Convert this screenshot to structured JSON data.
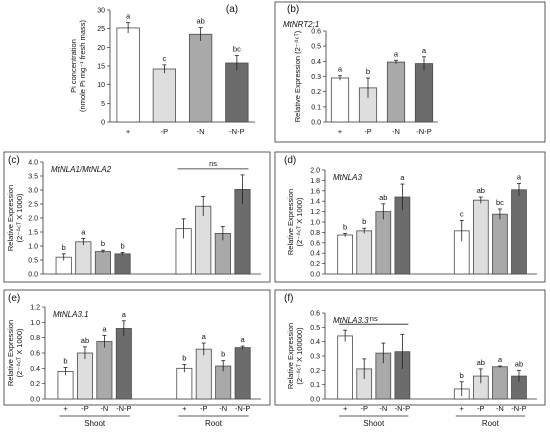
{
  "colors": {
    "plus": "#ffffff",
    "minusP": "#dedede",
    "minusN": "#a9a9a9",
    "minusNP": "#6c6c6c",
    "stroke": "#4a4a4a"
  },
  "categories": [
    "+",
    "-P",
    "-N",
    "-N-P"
  ],
  "groups": [
    "Shoot",
    "Root"
  ],
  "ns_label": "ns",
  "chart_data": [
    {
      "panel": "(a)",
      "type": "bar",
      "gene": "",
      "ylabel_lines": [
        "Pi concentration",
        "(nmole Pi mg⁻¹ fresh mass)"
      ],
      "ylim": [
        0,
        30
      ],
      "yticks": [
        "0",
        "5",
        "10",
        "15",
        "20",
        "25",
        "30"
      ],
      "categories": [
        "+",
        "-P",
        "-N",
        "-N-P"
      ],
      "values": [
        25.2,
        14.2,
        23.5,
        15.8
      ],
      "errors": [
        1.4,
        1.1,
        1.8,
        2.0
      ],
      "letters": [
        "a",
        "c",
        "ab",
        "bc"
      ]
    },
    {
      "panel": "(b)",
      "type": "bar",
      "gene": "MtNRT2;1",
      "ylabel_lines": [
        "Relative Expression (2⁻ᐞᶜᵀ)"
      ],
      "ylim": [
        0,
        0.6
      ],
      "yticks": [
        "0.0",
        "0.1",
        "0.2",
        "0.3",
        "0.4",
        "0.5",
        "0.6"
      ],
      "categories": [
        "+",
        "-P",
        "-N",
        "-N-P"
      ],
      "values": [
        0.29,
        0.225,
        0.395,
        0.385
      ],
      "errors": [
        0.015,
        0.065,
        0.012,
        0.045
      ],
      "letters": [
        "a",
        "b",
        "a",
        "a"
      ]
    },
    {
      "panel": "(c)",
      "type": "bar",
      "gene": "MtNLA1/MtNLA2",
      "ylabel_lines": [
        "Relative Expression",
        "(2⁻ᐞᶜᵀ X 1000)"
      ],
      "ylim": [
        0,
        4.0
      ],
      "yticks": [
        "0.0",
        "0.5",
        "1.0",
        "1.5",
        "2.0",
        "2.5",
        "3.0",
        "3.5",
        "4.0"
      ],
      "series": [
        {
          "group": "Shoot",
          "values": [
            0.6,
            1.15,
            0.8,
            0.72
          ],
          "errors": [
            0.12,
            0.12,
            0.05,
            0.05
          ],
          "letters": [
            "b",
            "a",
            "b",
            "b"
          ]
        },
        {
          "group": "Root",
          "values": [
            1.62,
            2.42,
            1.45,
            3.02
          ],
          "errors": [
            0.35,
            0.35,
            0.25,
            0.52
          ],
          "letters": [
            "",
            "",
            "",
            ""
          ]
        }
      ],
      "ns_over": "Root"
    },
    {
      "panel": "(d)",
      "type": "bar",
      "gene": "MtNLA3",
      "ylabel_lines": [
        "Relative Expression",
        "(2⁻ᐞᶜᵀ X 1000)"
      ],
      "ylim": [
        0,
        2.0
      ],
      "yticks": [
        "0.0",
        "0.2",
        "0.4",
        "0.6",
        "0.8",
        "1.0",
        "1.2",
        "1.4",
        "1.6",
        "1.8",
        "2.0"
      ],
      "series": [
        {
          "group": "Shoot",
          "values": [
            0.75,
            0.83,
            1.2,
            1.48
          ],
          "errors": [
            0.03,
            0.05,
            0.15,
            0.25
          ],
          "letters": [
            "b",
            "b",
            "ab",
            "a"
          ]
        },
        {
          "group": "Root",
          "values": [
            0.83,
            1.42,
            1.15,
            1.62
          ],
          "errors": [
            0.2,
            0.06,
            0.1,
            0.12
          ],
          "letters": [
            "c",
            "ab",
            "bc",
            "a"
          ]
        }
      ]
    },
    {
      "panel": "(e)",
      "type": "bar",
      "gene": "MtNLA3.1",
      "ylabel_lines": [
        "Relative Expression",
        "(2⁻ᐞᶜᵀ X 1000)"
      ],
      "ylim": [
        0,
        1.2
      ],
      "yticks": [
        "0.0",
        "0.2",
        "0.4",
        "0.6",
        "0.8",
        "1.0",
        "1.2"
      ],
      "series": [
        {
          "group": "Shoot",
          "values": [
            0.36,
            0.6,
            0.75,
            0.92
          ],
          "errors": [
            0.05,
            0.08,
            0.08,
            0.1
          ],
          "letters": [
            "b",
            "ab",
            "a",
            "a"
          ]
        },
        {
          "group": "Root",
          "values": [
            0.4,
            0.65,
            0.43,
            0.67
          ],
          "errors": [
            0.05,
            0.08,
            0.07,
            0.02
          ],
          "letters": [
            "b",
            "a",
            "b",
            "a"
          ]
        }
      ]
    },
    {
      "panel": "(f)",
      "type": "bar",
      "gene": "MtNLA3.3",
      "ylabel_lines": [
        "Relative Expression",
        "(2⁻ᐞᶜᵀ X 100000)"
      ],
      "ylim": [
        0,
        0.6
      ],
      "yticks": [
        "0.0",
        "0.1",
        "0.2",
        "0.3",
        "0.4",
        "0.5",
        "0.6"
      ],
      "series": [
        {
          "group": "Shoot",
          "values": [
            0.44,
            0.21,
            0.32,
            0.33
          ],
          "errors": [
            0.04,
            0.07,
            0.07,
            0.12
          ],
          "letters": [
            "",
            "",
            "",
            ""
          ]
        },
        {
          "group": "Root",
          "values": [
            0.07,
            0.16,
            0.225,
            0.16
          ],
          "errors": [
            0.05,
            0.05,
            0.005,
            0.04
          ],
          "letters": [
            "b",
            "ab",
            "a",
            "ab"
          ]
        }
      ],
      "ns_over": "Shoot"
    }
  ]
}
